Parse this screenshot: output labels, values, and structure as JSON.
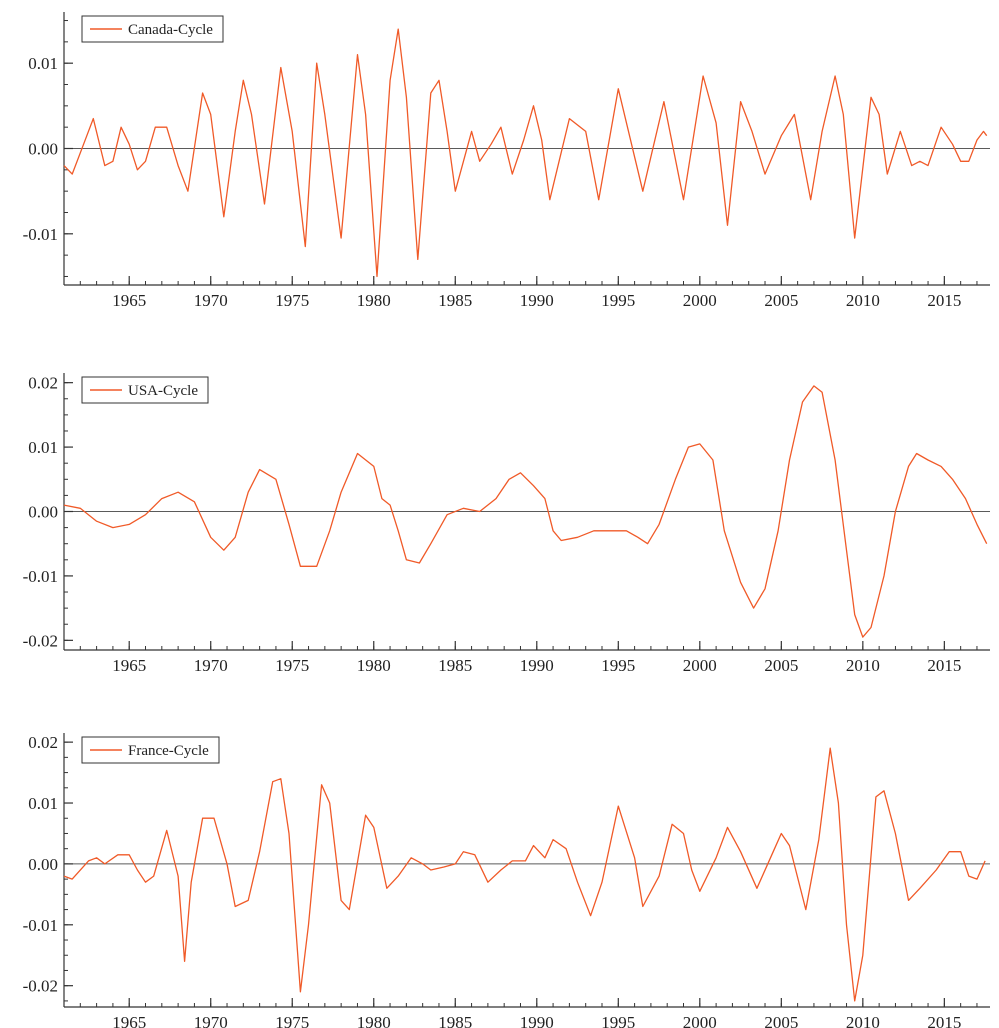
{
  "chart_data": [
    {
      "type": "line",
      "series": [
        {
          "name": "Canada-Cycle"
        }
      ],
      "x_range": [
        1961,
        2017.8
      ],
      "ylim": [
        -0.016,
        0.016
      ],
      "xticks": [
        1965,
        1970,
        1975,
        1980,
        1985,
        1990,
        1995,
        2000,
        2005,
        2010,
        2015
      ],
      "xtick_labels": [
        "1965",
        "1970",
        "1975",
        "1980",
        "1985",
        "1990",
        "1995",
        "2000",
        "2005",
        "2010",
        "2015"
      ],
      "yticks": [
        0.01,
        0.0,
        -0.01
      ],
      "ytick_labels": [
        "0.01",
        "0.00",
        "-0.01"
      ],
      "zero_line": true,
      "grid": false,
      "legend_position": "top-left",
      "points": [
        [
          1961,
          -0.002
        ],
        [
          1961.5,
          -0.003
        ],
        [
          1962.2,
          0.0005
        ],
        [
          1962.8,
          0.0035
        ],
        [
          1963.5,
          -0.002
        ],
        [
          1964,
          -0.0015
        ],
        [
          1964.5,
          0.0025
        ],
        [
          1965,
          0.0005
        ],
        [
          1965.5,
          -0.0025
        ],
        [
          1966,
          -0.0015
        ],
        [
          1966.6,
          0.0025
        ],
        [
          1967.3,
          0.0025
        ],
        [
          1968,
          -0.002
        ],
        [
          1968.6,
          -0.005
        ],
        [
          1969.5,
          0.0065
        ],
        [
          1970,
          0.004
        ],
        [
          1970.8,
          -0.008
        ],
        [
          1971.5,
          0.002
        ],
        [
          1972,
          0.008
        ],
        [
          1972.5,
          0.004
        ],
        [
          1973.3,
          -0.0065
        ],
        [
          1974.3,
          0.0095
        ],
        [
          1975,
          0.002
        ],
        [
          1975.8,
          -0.0115
        ],
        [
          1976.5,
          0.01
        ],
        [
          1977,
          0.004
        ],
        [
          1978,
          -0.0105
        ],
        [
          1979,
          0.011
        ],
        [
          1979.5,
          0.004
        ],
        [
          1980.2,
          -0.015
        ],
        [
          1981,
          0.008
        ],
        [
          1981.5,
          0.014
        ],
        [
          1982,
          0.006
        ],
        [
          1982.7,
          -0.013
        ],
        [
          1983.5,
          0.0065
        ],
        [
          1984,
          0.008
        ],
        [
          1984.5,
          0.002
        ],
        [
          1985,
          -0.005
        ],
        [
          1986,
          0.002
        ],
        [
          1986.5,
          -0.0015
        ],
        [
          1987.2,
          0.0005
        ],
        [
          1987.8,
          0.0025
        ],
        [
          1988.5,
          -0.003
        ],
        [
          1989.2,
          0.001
        ],
        [
          1989.8,
          0.005
        ],
        [
          1990.3,
          0.001
        ],
        [
          1990.8,
          -0.006
        ],
        [
          1992,
          0.0035
        ],
        [
          1993,
          0.002
        ],
        [
          1993.8,
          -0.006
        ],
        [
          1995,
          0.007
        ],
        [
          1996.5,
          -0.005
        ],
        [
          1997.8,
          0.0055
        ],
        [
          1999,
          -0.006
        ],
        [
          2000.2,
          0.0085
        ],
        [
          2001,
          0.003
        ],
        [
          2001.7,
          -0.009
        ],
        [
          2002.5,
          0.0055
        ],
        [
          2003.2,
          0.002
        ],
        [
          2004,
          -0.003
        ],
        [
          2005,
          0.0015
        ],
        [
          2005.8,
          0.004
        ],
        [
          2006.8,
          -0.006
        ],
        [
          2007.5,
          0.002
        ],
        [
          2008.3,
          0.0085
        ],
        [
          2008.8,
          0.004
        ],
        [
          2009.5,
          -0.0105
        ],
        [
          2010.5,
          0.006
        ],
        [
          2011,
          0.004
        ],
        [
          2011.5,
          -0.003
        ],
        [
          2012.3,
          0.002
        ],
        [
          2013,
          -0.002
        ],
        [
          2013.5,
          -0.0015
        ],
        [
          2014,
          -0.002
        ],
        [
          2014.8,
          0.0025
        ],
        [
          2015.5,
          0.0005
        ],
        [
          2016,
          -0.0015
        ],
        [
          2016.5,
          -0.0015
        ],
        [
          2017,
          0.001
        ],
        [
          2017.4,
          0.002
        ],
        [
          2017.6,
          0.0015
        ]
      ]
    },
    {
      "type": "line",
      "series": [
        {
          "name": "USA-Cycle"
        }
      ],
      "x_range": [
        1961,
        2017.8
      ],
      "ylim": [
        -0.0215,
        0.0215
      ],
      "xticks": [
        1965,
        1970,
        1975,
        1980,
        1985,
        1990,
        1995,
        2000,
        2005,
        2010,
        2015
      ],
      "xtick_labels": [
        "1965",
        "1970",
        "1975",
        "1980",
        "1985",
        "1990",
        "1995",
        "2000",
        "2005",
        "2010",
        "2015"
      ],
      "yticks": [
        0.02,
        0.01,
        0.0,
        -0.01,
        -0.02
      ],
      "ytick_labels": [
        "0.02",
        "0.01",
        "0.00",
        "-0.01",
        "-0.02"
      ],
      "zero_line": true,
      "grid": false,
      "legend_position": "top-left",
      "points": [
        [
          1961,
          0.001
        ],
        [
          1962,
          0.0005
        ],
        [
          1963,
          -0.0015
        ],
        [
          1964,
          -0.0025
        ],
        [
          1965,
          -0.002
        ],
        [
          1966,
          -0.0005
        ],
        [
          1967,
          0.002
        ],
        [
          1968,
          0.003
        ],
        [
          1969,
          0.0015
        ],
        [
          1970,
          -0.004
        ],
        [
          1970.8,
          -0.006
        ],
        [
          1971.5,
          -0.004
        ],
        [
          1972.3,
          0.003
        ],
        [
          1973,
          0.0065
        ],
        [
          1974,
          0.005
        ],
        [
          1974.8,
          -0.002
        ],
        [
          1975.5,
          -0.0085
        ],
        [
          1976.5,
          -0.0085
        ],
        [
          1977.3,
          -0.003
        ],
        [
          1978,
          0.003
        ],
        [
          1979,
          0.009
        ],
        [
          1980,
          0.007
        ],
        [
          1980.5,
          0.002
        ],
        [
          1981,
          0.001
        ],
        [
          1981.5,
          -0.003
        ],
        [
          1982,
          -0.0075
        ],
        [
          1982.8,
          -0.008
        ],
        [
          1983.5,
          -0.005
        ],
        [
          1984.5,
          -0.0005
        ],
        [
          1985.5,
          0.0005
        ],
        [
          1986.5,
          0.0
        ],
        [
          1987.5,
          0.002
        ],
        [
          1988.3,
          0.005
        ],
        [
          1989,
          0.006
        ],
        [
          1989.8,
          0.004
        ],
        [
          1990.5,
          0.002
        ],
        [
          1991,
          -0.003
        ],
        [
          1991.5,
          -0.0045
        ],
        [
          1992.5,
          -0.004
        ],
        [
          1993.5,
          -0.003
        ],
        [
          1994.5,
          -0.003
        ],
        [
          1995.5,
          -0.003
        ],
        [
          1996.2,
          -0.004
        ],
        [
          1996.8,
          -0.005
        ],
        [
          1997.5,
          -0.002
        ],
        [
          1998.5,
          0.005
        ],
        [
          1999.3,
          0.01
        ],
        [
          2000,
          0.0105
        ],
        [
          2000.8,
          0.008
        ],
        [
          2001.5,
          -0.003
        ],
        [
          2002.5,
          -0.011
        ],
        [
          2003.3,
          -0.015
        ],
        [
          2004,
          -0.012
        ],
        [
          2004.8,
          -0.003
        ],
        [
          2005.5,
          0.008
        ],
        [
          2006.3,
          0.017
        ],
        [
          2007,
          0.0195
        ],
        [
          2007.5,
          0.0185
        ],
        [
          2008.3,
          0.008
        ],
        [
          2009,
          -0.006
        ],
        [
          2009.5,
          -0.016
        ],
        [
          2010,
          -0.0195
        ],
        [
          2010.5,
          -0.018
        ],
        [
          2011.3,
          -0.01
        ],
        [
          2012,
          0.0
        ],
        [
          2012.8,
          0.007
        ],
        [
          2013.3,
          0.009
        ],
        [
          2014,
          0.008
        ],
        [
          2014.8,
          0.007
        ],
        [
          2015.5,
          0.005
        ],
        [
          2016.3,
          0.002
        ],
        [
          2017,
          -0.002
        ],
        [
          2017.6,
          -0.005
        ]
      ]
    },
    {
      "type": "line",
      "series": [
        {
          "name": "France-Cycle"
        }
      ],
      "x_range": [
        1961,
        2017.8
      ],
      "ylim": [
        -0.0235,
        0.0215
      ],
      "xticks": [
        1965,
        1970,
        1975,
        1980,
        1985,
        1990,
        1995,
        2000,
        2005,
        2010,
        2015
      ],
      "xtick_labels": [
        "1965",
        "1970",
        "1975",
        "1980",
        "1985",
        "1990",
        "1995",
        "2000",
        "2005",
        "2010",
        "2015"
      ],
      "yticks": [
        0.02,
        0.01,
        0.0,
        -0.01,
        -0.02
      ],
      "ytick_labels": [
        "0.02",
        "0.01",
        "0.00",
        "-0.01",
        "-0.02"
      ],
      "zero_line": true,
      "grid": false,
      "legend_position": "top-left",
      "points": [
        [
          1961,
          -0.002
        ],
        [
          1961.5,
          -0.0025
        ],
        [
          1962.5,
          0.0005
        ],
        [
          1963,
          0.001
        ],
        [
          1963.5,
          0.0
        ],
        [
          1964.3,
          0.0015
        ],
        [
          1965,
          0.0015
        ],
        [
          1965.5,
          -0.001
        ],
        [
          1966,
          -0.003
        ],
        [
          1966.5,
          -0.002
        ],
        [
          1967.3,
          0.0055
        ],
        [
          1968,
          -0.002
        ],
        [
          1968.4,
          -0.016
        ],
        [
          1968.8,
          -0.003
        ],
        [
          1969.5,
          0.0075
        ],
        [
          1970.2,
          0.0075
        ],
        [
          1971,
          0.0
        ],
        [
          1971.5,
          -0.007
        ],
        [
          1972.3,
          -0.006
        ],
        [
          1973,
          0.002
        ],
        [
          1973.8,
          0.0135
        ],
        [
          1974.3,
          0.014
        ],
        [
          1974.8,
          0.005
        ],
        [
          1975.5,
          -0.021
        ],
        [
          1976,
          -0.01
        ],
        [
          1976.8,
          0.013
        ],
        [
          1977.3,
          0.01
        ],
        [
          1978,
          -0.006
        ],
        [
          1978.5,
          -0.0075
        ],
        [
          1979.5,
          0.008
        ],
        [
          1980,
          0.006
        ],
        [
          1980.8,
          -0.004
        ],
        [
          1981.5,
          -0.002
        ],
        [
          1982.3,
          0.001
        ],
        [
          1983,
          0.0
        ],
        [
          1983.5,
          -0.001
        ],
        [
          1984.3,
          -0.0005
        ],
        [
          1985,
          0.0
        ],
        [
          1985.5,
          0.002
        ],
        [
          1986.2,
          0.0015
        ],
        [
          1987,
          -0.003
        ],
        [
          1987.8,
          -0.001
        ],
        [
          1988.5,
          0.0005
        ],
        [
          1989.3,
          0.0005
        ],
        [
          1989.8,
          0.003
        ],
        [
          1990.5,
          0.001
        ],
        [
          1991,
          0.004
        ],
        [
          1991.8,
          0.0025
        ],
        [
          1992.5,
          -0.003
        ],
        [
          1993.3,
          -0.0085
        ],
        [
          1994,
          -0.003
        ],
        [
          1995,
          0.0095
        ],
        [
          1996,
          0.001
        ],
        [
          1996.5,
          -0.007
        ],
        [
          1997.5,
          -0.002
        ],
        [
          1998.3,
          0.0065
        ],
        [
          1999,
          0.005
        ],
        [
          1999.5,
          -0.001
        ],
        [
          2000,
          -0.0045
        ],
        [
          2001,
          0.001
        ],
        [
          2001.7,
          0.006
        ],
        [
          2002.5,
          0.002
        ],
        [
          2003.5,
          -0.004
        ],
        [
          2004.5,
          0.002
        ],
        [
          2005,
          0.005
        ],
        [
          2005.5,
          0.003
        ],
        [
          2006.5,
          -0.0075
        ],
        [
          2007.3,
          0.004
        ],
        [
          2008,
          0.019
        ],
        [
          2008.5,
          0.01
        ],
        [
          2009,
          -0.01
        ],
        [
          2009.5,
          -0.0225
        ],
        [
          2010,
          -0.015
        ],
        [
          2010.8,
          0.011
        ],
        [
          2011.3,
          0.012
        ],
        [
          2012,
          0.005
        ],
        [
          2012.8,
          -0.006
        ],
        [
          2013.5,
          -0.004
        ],
        [
          2014.5,
          -0.001
        ],
        [
          2015.3,
          0.002
        ],
        [
          2016,
          0.002
        ],
        [
          2016.5,
          -0.002
        ],
        [
          2017,
          -0.0025
        ],
        [
          2017.5,
          0.0005
        ]
      ]
    }
  ],
  "colors": {
    "line": "#f05a28",
    "zero_line": "#5a5a5a",
    "axis": "#333333",
    "text": "#222222"
  }
}
